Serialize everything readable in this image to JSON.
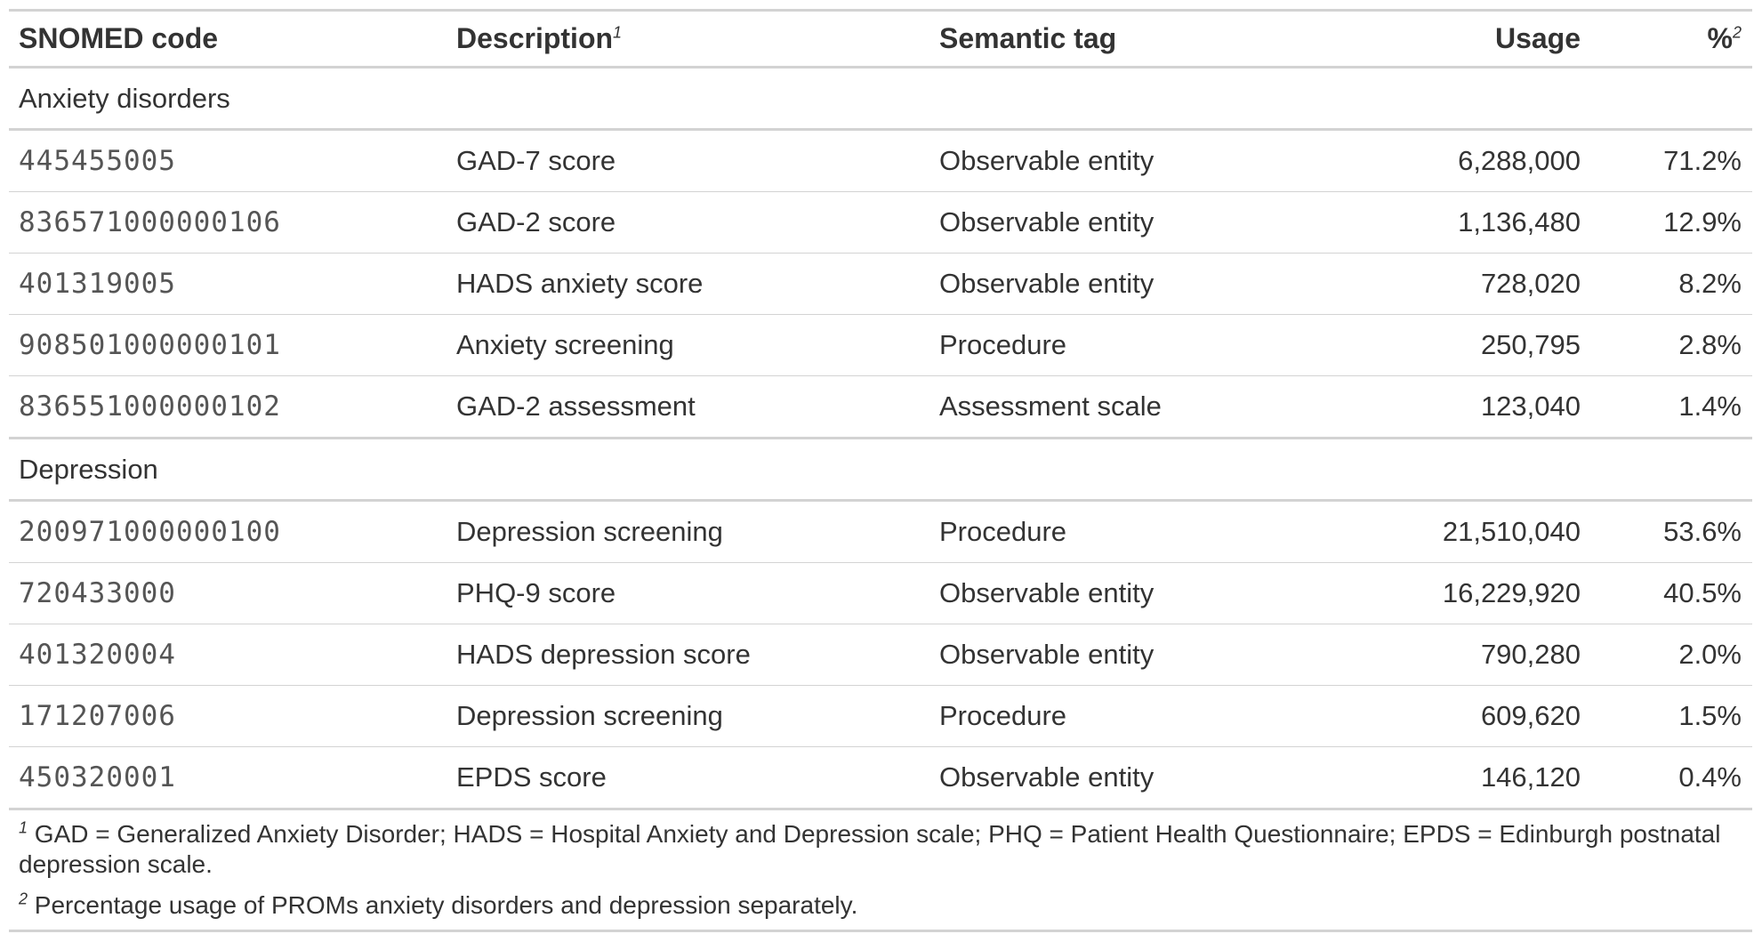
{
  "table": {
    "headers": {
      "code": "SNOMED code",
      "description": "Description",
      "description_mark": "1",
      "tag": "Semantic tag",
      "usage": "Usage",
      "pct": "%",
      "pct_mark": "2"
    },
    "groups": [
      {
        "label": "Anxiety disorders",
        "rows": [
          {
            "code": "445455005",
            "description": "GAD-7 score",
            "tag": "Observable entity",
            "usage": "6,288,000",
            "pct": "71.2%"
          },
          {
            "code": "836571000000106",
            "description": "GAD-2 score",
            "tag": "Observable entity",
            "usage": "1,136,480",
            "pct": "12.9%"
          },
          {
            "code": "401319005",
            "description": "HADS anxiety score",
            "tag": "Observable entity",
            "usage": "728,020",
            "pct": "8.2%"
          },
          {
            "code": "908501000000101",
            "description": "Anxiety screening",
            "tag": "Procedure",
            "usage": "250,795",
            "pct": "2.8%"
          },
          {
            "code": "836551000000102",
            "description": "GAD-2 assessment",
            "tag": "Assessment scale",
            "usage": "123,040",
            "pct": "1.4%"
          }
        ]
      },
      {
        "label": "Depression",
        "rows": [
          {
            "code": "200971000000100",
            "description": "Depression screening",
            "tag": "Procedure",
            "usage": "21,510,040",
            "pct": "53.6%"
          },
          {
            "code": "720433000",
            "description": "PHQ-9 score",
            "tag": "Observable entity",
            "usage": "16,229,920",
            "pct": "40.5%"
          },
          {
            "code": "401320004",
            "description": "HADS depression score",
            "tag": "Observable entity",
            "usage": "790,280",
            "pct": "2.0%"
          },
          {
            "code": "171207006",
            "description": "Depression screening",
            "tag": "Procedure",
            "usage": "609,620",
            "pct": "1.5%"
          },
          {
            "code": "450320001",
            "description": "EPDS score",
            "tag": "Observable entity",
            "usage": "146,120",
            "pct": "0.4%"
          }
        ]
      }
    ],
    "footnotes": [
      {
        "mark": "1",
        "text": "GAD = Generalized Anxiety Disorder; HADS = Hospital Anxiety and Depression scale; PHQ = Patient Health Questionnaire; EPDS = Edinburgh postnatal depression scale."
      },
      {
        "mark": "2",
        "text": "Percentage usage of PROMs anxiety disorders and depression separately."
      }
    ]
  }
}
